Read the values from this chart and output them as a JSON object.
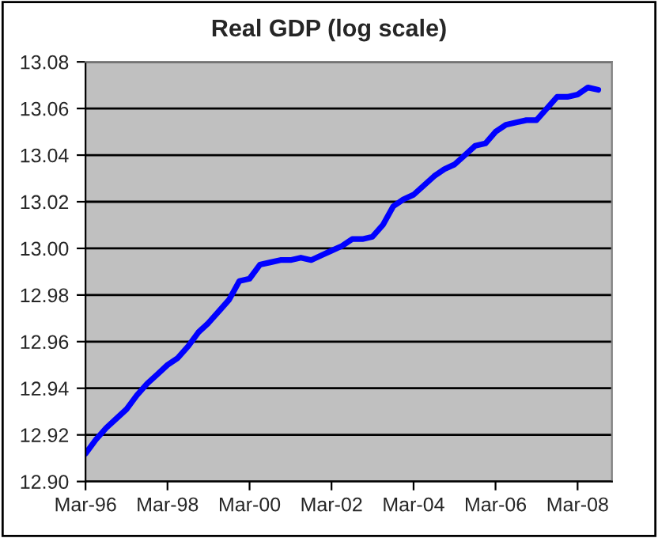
{
  "chart_data": {
    "type": "line",
    "title": "Real GDP (log scale)",
    "x": [
      "1996-03",
      "1996-06",
      "1996-09",
      "1996-12",
      "1997-03",
      "1997-06",
      "1997-09",
      "1997-12",
      "1998-03",
      "1998-06",
      "1998-09",
      "1998-12",
      "1999-03",
      "1999-06",
      "1999-09",
      "1999-12",
      "2000-03",
      "2000-06",
      "2000-09",
      "2000-12",
      "2001-03",
      "2001-06",
      "2001-09",
      "2001-12",
      "2002-03",
      "2002-06",
      "2002-09",
      "2002-12",
      "2003-03",
      "2003-06",
      "2003-09",
      "2003-12",
      "2004-03",
      "2004-06",
      "2004-09",
      "2004-12",
      "2005-03",
      "2005-06",
      "2005-09",
      "2005-12",
      "2006-03",
      "2006-06",
      "2006-09",
      "2006-12",
      "2007-03",
      "2007-06",
      "2007-09",
      "2007-12",
      "2008-03",
      "2008-06",
      "2008-09"
    ],
    "series": [
      {
        "color": "#0000ff",
        "values": [
          12.912,
          12.918,
          12.923,
          12.927,
          12.931,
          12.937,
          12.942,
          12.946,
          12.95,
          12.953,
          12.958,
          12.964,
          12.968,
          12.973,
          12.978,
          12.986,
          12.987,
          12.993,
          12.994,
          12.995,
          12.995,
          12.996,
          12.995,
          12.997,
          12.999,
          13.001,
          13.004,
          13.004,
          13.005,
          13.01,
          13.018,
          13.021,
          13.023,
          13.027,
          13.031,
          13.034,
          13.036,
          13.04,
          13.044,
          13.045,
          13.05,
          13.053,
          13.054,
          13.055,
          13.055,
          13.06,
          13.065,
          13.065,
          13.066,
          13.069,
          13.068
        ]
      }
    ],
    "xlim": [
      "1996-03",
      "2009-01"
    ],
    "xticks": [
      {
        "value": "1996-03",
        "label": "Mar-96"
      },
      {
        "value": "1998-03",
        "label": "Mar-98"
      },
      {
        "value": "2000-03",
        "label": "Mar-00"
      },
      {
        "value": "2002-03",
        "label": "Mar-02"
      },
      {
        "value": "2004-03",
        "label": "Mar-04"
      },
      {
        "value": "2006-03",
        "label": "Mar-06"
      },
      {
        "value": "2008-03",
        "label": "Mar-08"
      }
    ],
    "ylim": [
      12.9,
      13.08
    ],
    "yticks": [
      {
        "value": 12.9,
        "label": "12.90"
      },
      {
        "value": 12.92,
        "label": "12.92"
      },
      {
        "value": 12.94,
        "label": "12.94"
      },
      {
        "value": 12.96,
        "label": "12.96"
      },
      {
        "value": 12.98,
        "label": "12.98"
      },
      {
        "value": 13.0,
        "label": "13.00"
      },
      {
        "value": 13.02,
        "label": "13.02"
      },
      {
        "value": 13.04,
        "label": "13.04"
      },
      {
        "value": 13.06,
        "label": "13.06"
      },
      {
        "value": 13.08,
        "label": "13.08"
      }
    ],
    "grid": "y",
    "legend": false,
    "marker": "none",
    "line_style": "solid"
  }
}
